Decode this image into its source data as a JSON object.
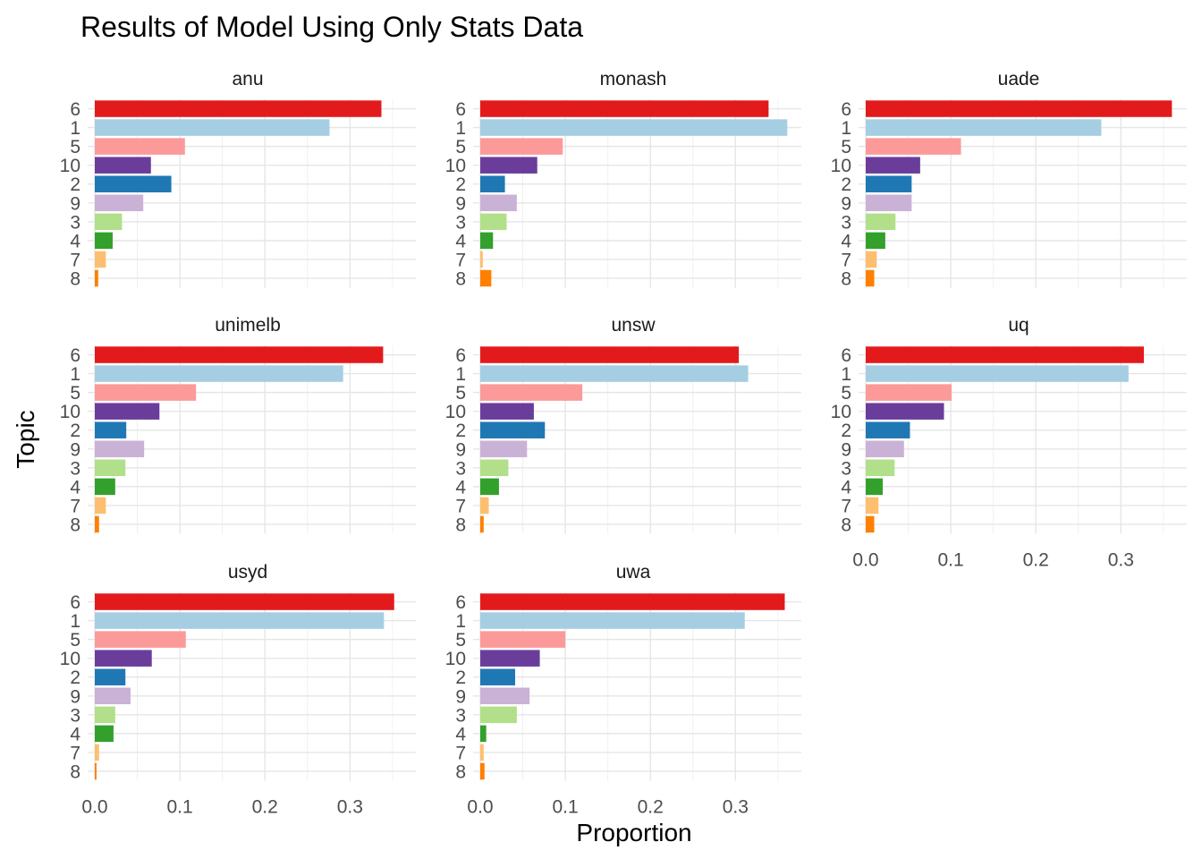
{
  "chart_data": {
    "type": "bar",
    "orientation": "horizontal",
    "title": "Results of Model Using Only Stats Data",
    "xlabel": "Proportion",
    "ylabel": "Topic",
    "xlim": [
      0,
      0.37
    ],
    "x_ticks": [
      "0.0",
      "0.1",
      "0.2",
      "0.3"
    ],
    "x_tick_values": [
      0,
      0.1,
      0.2,
      0.3
    ],
    "categories": [
      "6",
      "1",
      "5",
      "10",
      "2",
      "9",
      "3",
      "4",
      "7",
      "8"
    ],
    "grid": true,
    "colors": {
      "6": "#E31A1C",
      "1": "#A6CEE3",
      "5": "#FB9A99",
      "10": "#6A3D9A",
      "2": "#1F78B4",
      "9": "#CAB2D6",
      "3": "#B2DF8A",
      "4": "#33A02C",
      "7": "#FDBF6F",
      "8": "#FF7F00"
    },
    "panels": [
      {
        "name": "anu",
        "values": [
          0.337,
          0.276,
          0.106,
          0.066,
          0.09,
          0.057,
          0.032,
          0.021,
          0.013,
          0.004
        ]
      },
      {
        "name": "monash",
        "values": [
          0.339,
          0.361,
          0.097,
          0.067,
          0.029,
          0.043,
          0.031,
          0.015,
          0.003,
          0.013
        ]
      },
      {
        "name": "uade",
        "values": [
          0.36,
          0.277,
          0.112,
          0.064,
          0.054,
          0.054,
          0.035,
          0.023,
          0.013,
          0.01
        ]
      },
      {
        "name": "unimelb",
        "values": [
          0.339,
          0.292,
          0.119,
          0.076,
          0.037,
          0.058,
          0.036,
          0.024,
          0.013,
          0.005
        ]
      },
      {
        "name": "unsw",
        "values": [
          0.304,
          0.315,
          0.12,
          0.063,
          0.076,
          0.055,
          0.033,
          0.022,
          0.01,
          0.004
        ]
      },
      {
        "name": "uq",
        "values": [
          0.327,
          0.309,
          0.101,
          0.092,
          0.052,
          0.045,
          0.034,
          0.02,
          0.015,
          0.01
        ]
      },
      {
        "name": "usyd",
        "values": [
          0.352,
          0.34,
          0.107,
          0.067,
          0.036,
          0.042,
          0.024,
          0.022,
          0.005,
          0.002
        ]
      },
      {
        "name": "uwa",
        "values": [
          0.358,
          0.311,
          0.1,
          0.07,
          0.041,
          0.058,
          0.043,
          0.007,
          0.004,
          0.005
        ]
      }
    ]
  }
}
